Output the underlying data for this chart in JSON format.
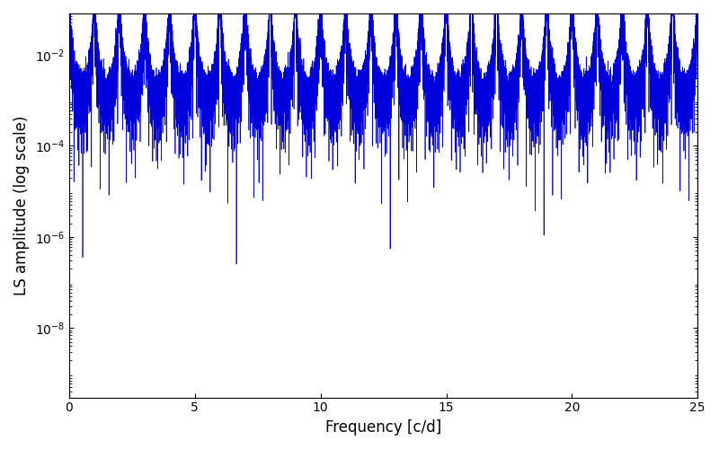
{
  "xlabel": "Frequency [c/d]",
  "ylabel": "LS amplitude (log scale)",
  "xlim": [
    0,
    25
  ],
  "ylim": [
    3e-10,
    0.08
  ],
  "line_color": "#0000dd",
  "line_width": 0.5,
  "figsize": [
    8.0,
    5.0
  ],
  "dpi": 100,
  "bg_color": "#ffffff",
  "seed": 12345,
  "n_freq": 12000,
  "freq_max": 25.0,
  "yticks": [
    1e-08,
    1e-06,
    0.0001,
    0.01
  ],
  "xticks": [
    0,
    5,
    10,
    15,
    20,
    25
  ]
}
